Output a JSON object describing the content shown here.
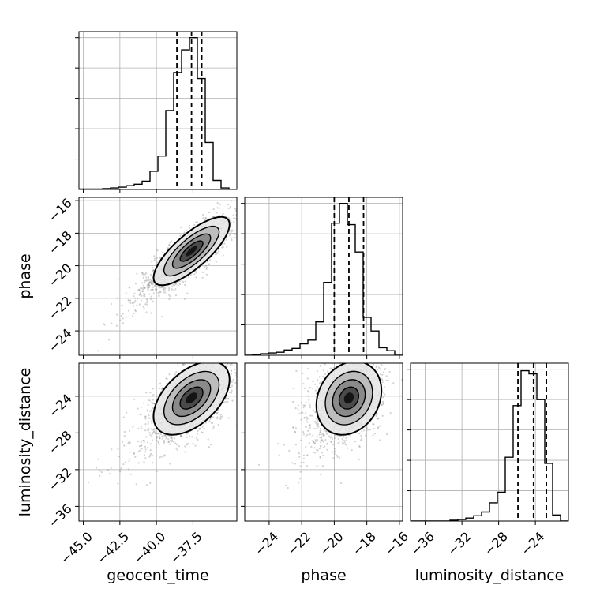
{
  "chart_data": {
    "type": "corner",
    "parameters": [
      "geocent_time",
      "phase",
      "luminosity_distance"
    ],
    "axis_labels": {
      "x": [
        "geocent_time",
        "phase",
        "luminosity_distance"
      ],
      "y": [
        "",
        "phase",
        "luminosity_distance"
      ]
    },
    "ranges": {
      "geocent_time": [
        -45.3,
        -34.5
      ],
      "phase": [
        -25.5,
        -15.8
      ],
      "luminosity_distance": [
        -37.6,
        -20.4
      ]
    },
    "ticks": {
      "geocent_time": {
        "values": [
          -45.0,
          -42.5,
          -40.0,
          -37.5
        ],
        "labels": [
          "−45.0",
          "−42.5",
          "−40.0",
          "−37.5"
        ]
      },
      "phase": {
        "values": [
          -24,
          -22,
          -20,
          -18,
          -16
        ],
        "labels": [
          "−24",
          "−22",
          "−20",
          "−18",
          "−16"
        ]
      },
      "luminosity_distance": {
        "values": [
          -36,
          -32,
          -28,
          -24
        ],
        "labels": [
          "−36",
          "−32",
          "−28",
          "−24"
        ]
      }
    },
    "grid": true,
    "quantile_lines": {
      "geocent_time": [
        -38.6,
        -37.6,
        -36.9
      ],
      "phase": [
        -20.0,
        -19.1,
        -18.2
      ],
      "luminosity_distance": [
        -25.9,
        -24.2,
        -22.8
      ]
    },
    "histograms": {
      "geocent_time": {
        "edges": [
          -45.3,
          -44.76,
          -44.22,
          -43.68,
          -43.14,
          -42.6,
          -42.06,
          -41.52,
          -40.98,
          -40.44,
          -39.9,
          -39.36,
          -38.82,
          -38.28,
          -37.74,
          -37.2,
          -36.66,
          -36.12,
          -35.58,
          -35.04,
          -34.5
        ],
        "counts": [
          0.003,
          0.003,
          0.003,
          0.005,
          0.01,
          0.015,
          0.025,
          0.035,
          0.055,
          0.12,
          0.22,
          0.52,
          0.77,
          0.92,
          1.0,
          0.73,
          0.31,
          0.06,
          0.01,
          0.0
        ]
      },
      "phase": {
        "edges": [
          -25.5,
          -25.015,
          -24.53,
          -24.045,
          -23.56,
          -23.075,
          -22.59,
          -22.105,
          -21.62,
          -21.135,
          -20.65,
          -20.165,
          -19.68,
          -19.195,
          -18.71,
          -18.225,
          -17.74,
          -17.255,
          -16.77,
          -16.285,
          -15.8
        ],
        "counts": [
          0.0,
          0.005,
          0.01,
          0.015,
          0.02,
          0.035,
          0.045,
          0.075,
          0.1,
          0.22,
          0.48,
          0.87,
          1.0,
          0.86,
          0.68,
          0.25,
          0.16,
          0.05,
          0.03,
          0.0
        ]
      },
      "luminosity_distance": {
        "edges": [
          -37.6,
          -36.74,
          -35.88,
          -35.02,
          -34.16,
          -33.3,
          -32.44,
          -31.58,
          -30.72,
          -29.86,
          -29.0,
          -28.14,
          -27.28,
          -26.42,
          -25.56,
          -24.7,
          -23.84,
          -22.98,
          -22.12,
          -21.26,
          -20.4
        ],
        "counts": [
          0.0,
          0.0,
          0.0,
          0.0,
          0.0,
          0.005,
          0.01,
          0.02,
          0.035,
          0.06,
          0.12,
          0.19,
          0.42,
          0.76,
          0.99,
          0.97,
          0.8,
          0.38,
          0.04,
          0.0
        ]
      }
    },
    "samples_2d": {
      "geocent_time-phase": {
        "center": [
          -37.6,
          -19.1
        ],
        "sd": [
          1.3,
          1.05
        ],
        "corr": 0.78,
        "tail_direction": [
          -1.0,
          -1.0
        ]
      },
      "geocent_time-luminosity_distance": {
        "center": [
          -37.6,
          -24.2
        ],
        "sd": [
          1.3,
          2.0
        ],
        "corr": 0.5,
        "tail_direction": [
          -1.0,
          -1.0
        ]
      },
      "phase-luminosity_distance": {
        "center": [
          -19.1,
          -24.2
        ],
        "sd": [
          1.0,
          2.0
        ],
        "corr": 0.2,
        "tail_direction": [
          -1.0,
          -1.0
        ]
      }
    },
    "colors": {
      "line": "#000000",
      "grid": "#b0b0b0",
      "points": "#7f7f7f",
      "density_shades": [
        "#e6e6e6",
        "#bdbdbd",
        "#8a8a8a",
        "#4a4a4a",
        "#141414"
      ]
    }
  }
}
